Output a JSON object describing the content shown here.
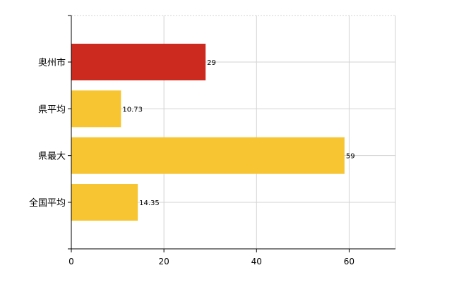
{
  "chart_data": {
    "type": "bar",
    "orientation": "horizontal",
    "title": "",
    "xlabel": "",
    "ylabel": "",
    "categories": [
      "奥州市",
      "県平均",
      "県最大",
      "全国平均"
    ],
    "values": [
      29,
      10.73,
      59,
      14.35
    ],
    "data_labels": [
      "29",
      "10.73",
      "59",
      "14.35"
    ],
    "bar_colors": [
      "#cc2a1e",
      "#f7c532",
      "#f7c532",
      "#f7c532"
    ],
    "xlim": [
      0,
      70
    ],
    "x_ticks": [
      0,
      20,
      40,
      60
    ],
    "x_tick_labels": [
      "0",
      "20",
      "40",
      "60"
    ],
    "grid": true,
    "legend": "none"
  }
}
